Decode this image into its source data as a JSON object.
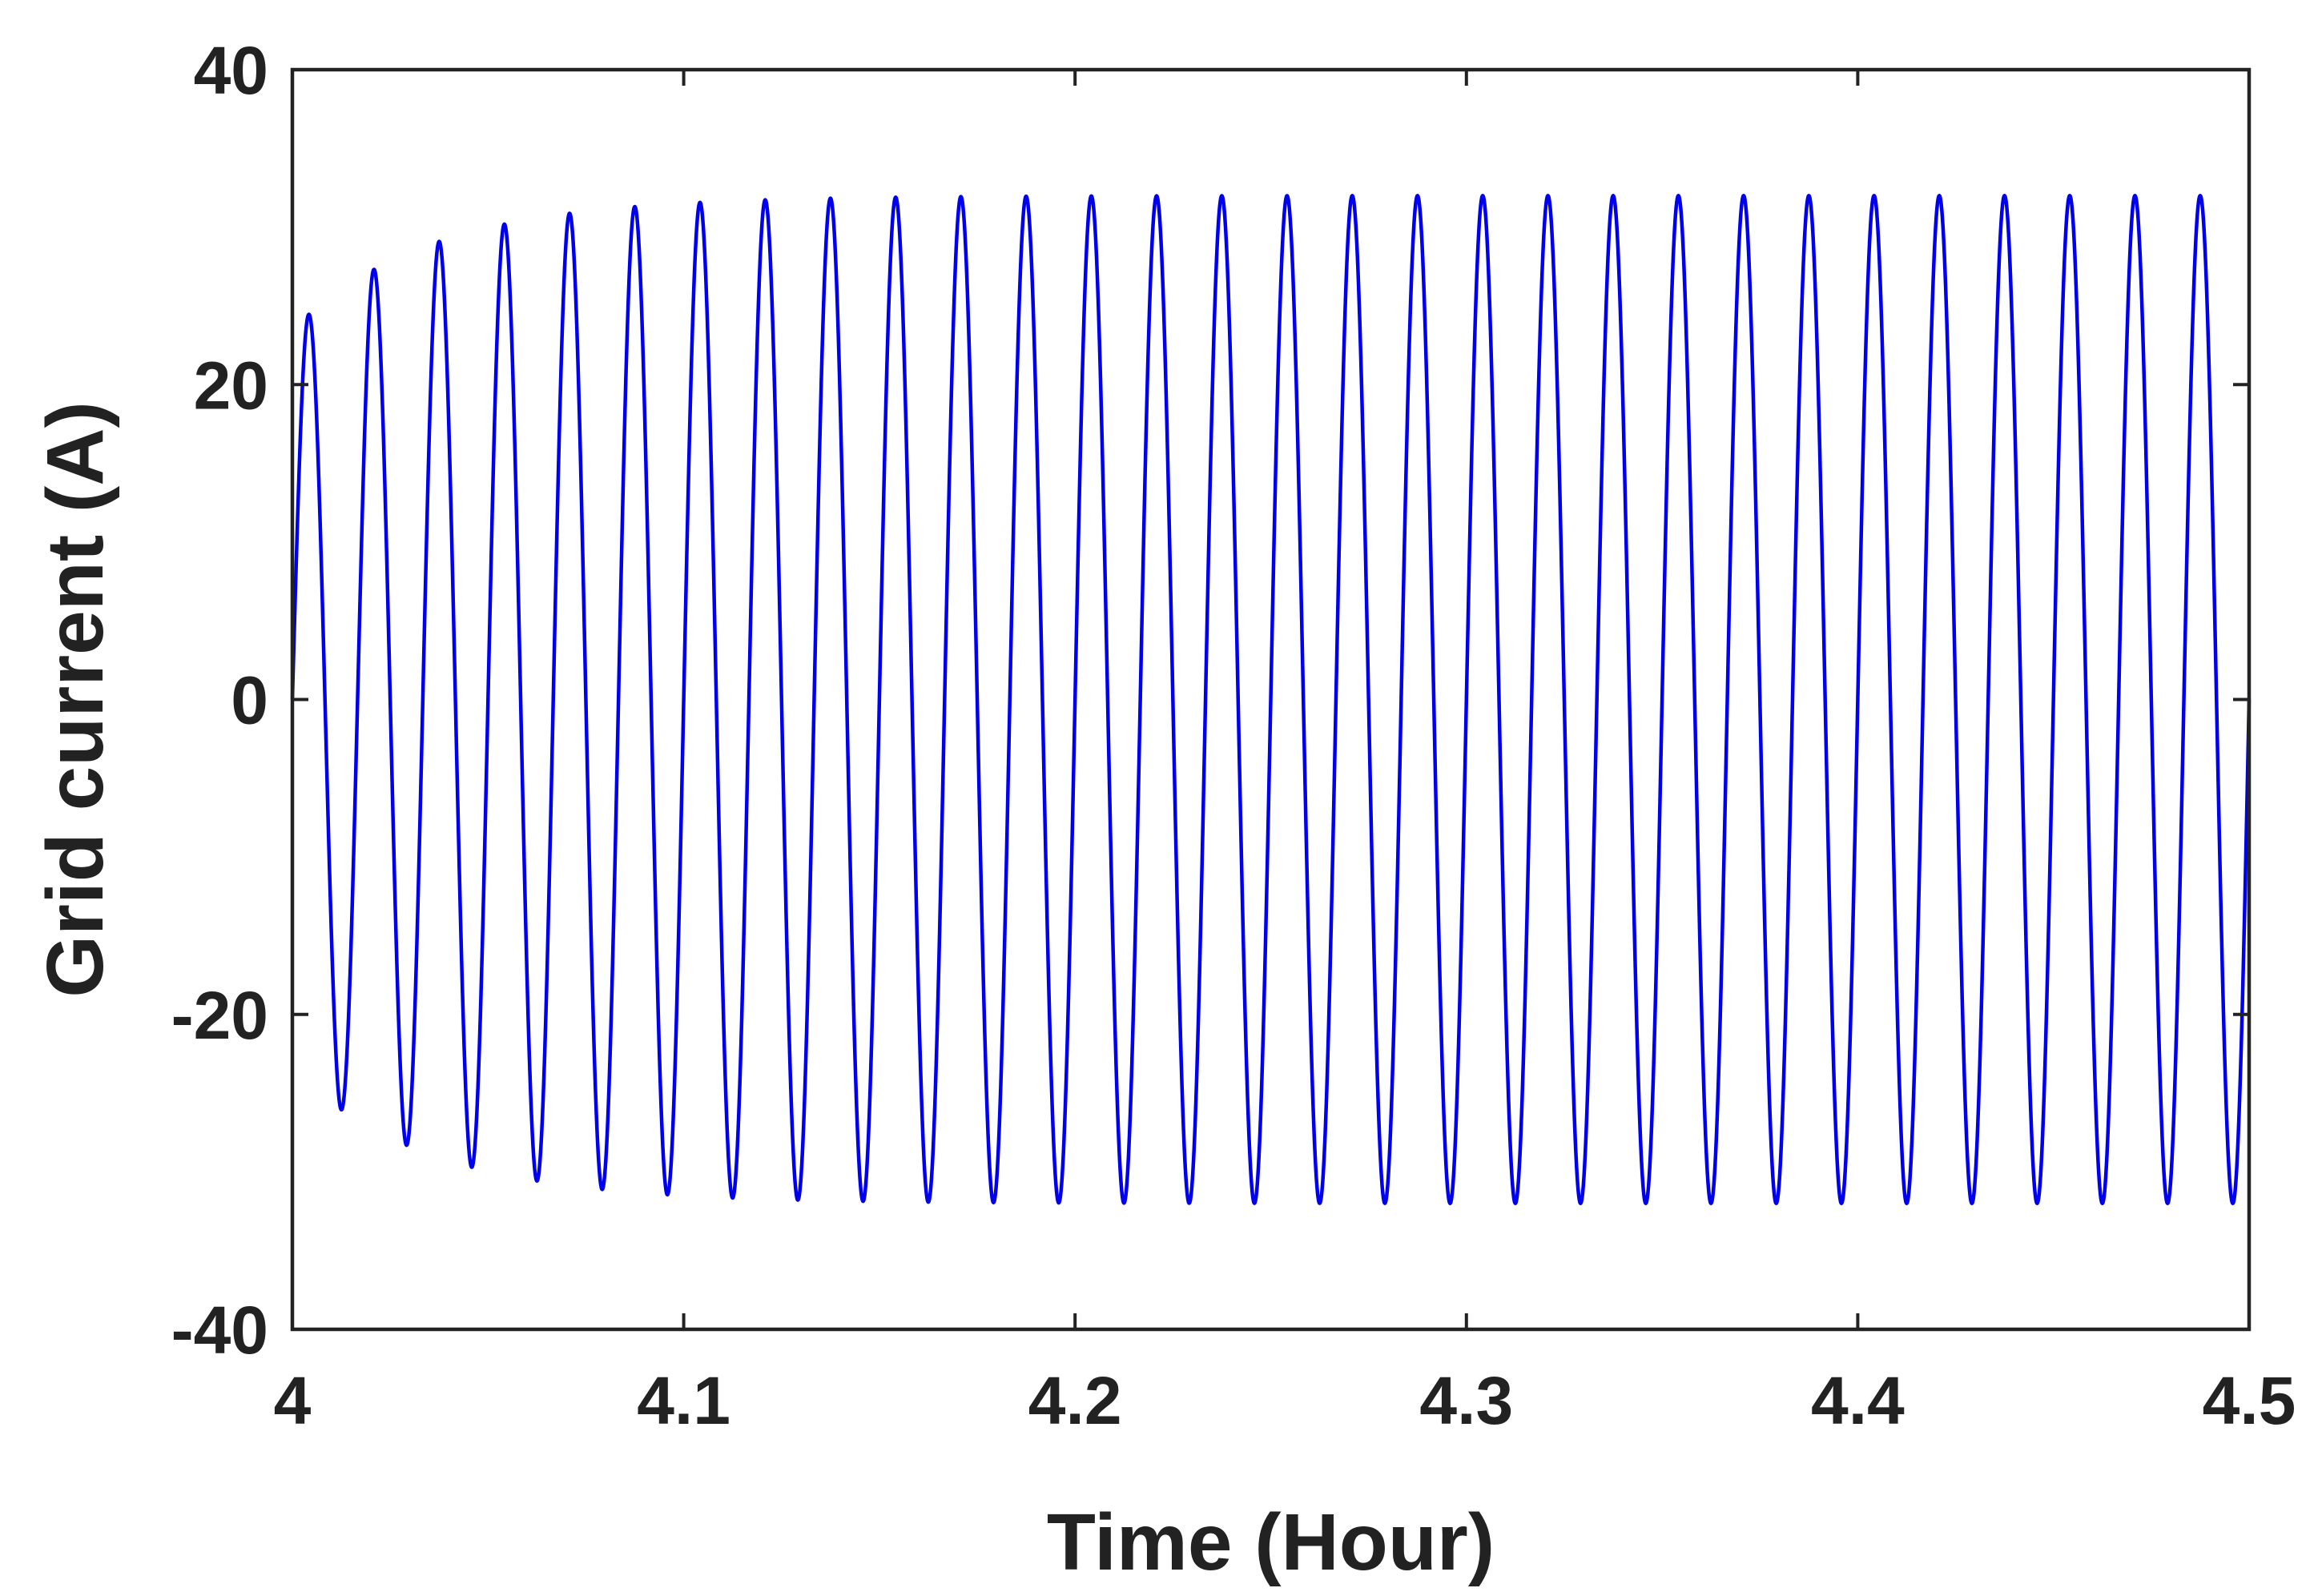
{
  "chart_data": {
    "type": "line",
    "title": "",
    "xlabel": "Time (Hour)",
    "ylabel": "Grid current (A)",
    "xlim": [
      4,
      4.5
    ],
    "ylim": [
      -40,
      40
    ],
    "xticks": [
      "4",
      "4.1",
      "4.2",
      "4.3",
      "4.4",
      "4.5"
    ],
    "yticks": [
      "40",
      "20",
      "0",
      "-20",
      "-40"
    ],
    "grid": false,
    "legend": "none",
    "series": [
      {
        "color": "#0000ee",
        "description_of_shape": "sinusoid starting at 0, amplitude rising from ~24 A to a steady ~32 A, about 30 cycles between 4 and 4.5 h",
        "peaks": [
          {
            "x": 4.004,
            "y": 24.5
          },
          {
            "x": 4.021,
            "y": 28
          },
          {
            "x": 4.038,
            "y": 29.6
          },
          {
            "x": 4.054,
            "y": 30.6
          },
          {
            "x": 4.071,
            "y": 31.2
          },
          {
            "x": 4.088,
            "y": 31.6
          },
          {
            "x": 4.104,
            "y": 31.8
          },
          {
            "x": 4.121,
            "y": 32
          },
          {
            "x": 4.138,
            "y": 32
          },
          {
            "x": 4.488,
            "y": 32
          }
        ],
        "troughs": [
          {
            "x": 4.013,
            "y": -26.5
          },
          {
            "x": 4.029,
            "y": -29
          },
          {
            "x": 4.046,
            "y": -30
          },
          {
            "x": 4.063,
            "y": -30.8
          },
          {
            "x": 4.079,
            "y": -31.3
          },
          {
            "x": 4.096,
            "y": -31.6
          },
          {
            "x": 4.113,
            "y": -31.8
          },
          {
            "x": 4.129,
            "y": -32
          },
          {
            "x": 4.496,
            "y": -32
          }
        ],
        "cycles": 30,
        "steady_amplitude": 32
      }
    ]
  }
}
